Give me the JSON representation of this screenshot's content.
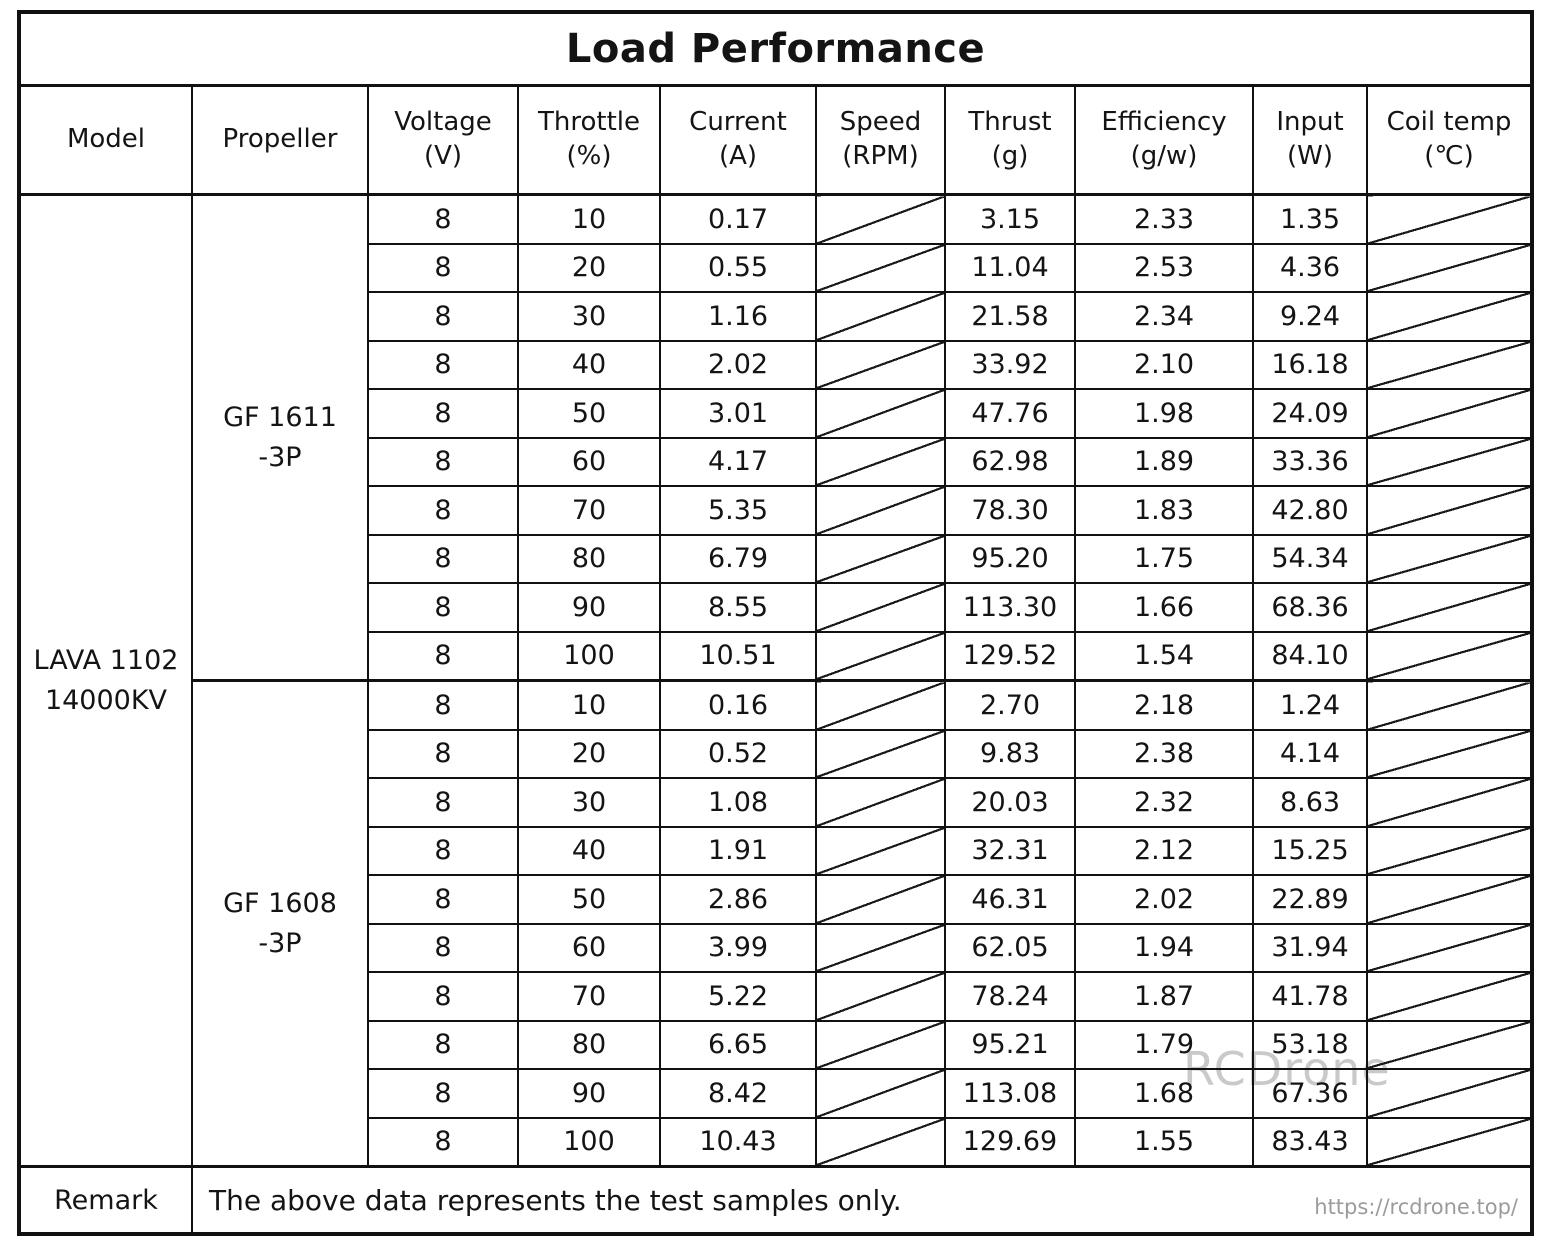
{
  "title": "Load Performance",
  "watermark": "RCDrone",
  "columns": [
    {
      "label": "Model",
      "unit": ""
    },
    {
      "label": "Propeller",
      "unit": ""
    },
    {
      "label": "Voltage",
      "unit": "(V)"
    },
    {
      "label": "Throttle",
      "unit": "(%)"
    },
    {
      "label": "Current",
      "unit": "(A)"
    },
    {
      "label": "Speed",
      "unit": "(RPM)"
    },
    {
      "label": "Thrust",
      "unit": "(g)"
    },
    {
      "label": "Efficiency",
      "unit": "(g/w)"
    },
    {
      "label": "Input",
      "unit": "(W)"
    },
    {
      "label": "Coil temp",
      "unit": "(℃)"
    }
  ],
  "model": "LAVA 1102\n14000KV",
  "groups": [
    {
      "propeller": "GF 1611\n-3P",
      "rows": [
        {
          "voltage": "8",
          "throttle": "10",
          "current": "0.17",
          "thrust": "3.15",
          "efficiency": "2.33",
          "input": "1.35"
        },
        {
          "voltage": "8",
          "throttle": "20",
          "current": "0.55",
          "thrust": "11.04",
          "efficiency": "2.53",
          "input": "4.36"
        },
        {
          "voltage": "8",
          "throttle": "30",
          "current": "1.16",
          "thrust": "21.58",
          "efficiency": "2.34",
          "input": "9.24"
        },
        {
          "voltage": "8",
          "throttle": "40",
          "current": "2.02",
          "thrust": "33.92",
          "efficiency": "2.10",
          "input": "16.18"
        },
        {
          "voltage": "8",
          "throttle": "50",
          "current": "3.01",
          "thrust": "47.76",
          "efficiency": "1.98",
          "input": "24.09"
        },
        {
          "voltage": "8",
          "throttle": "60",
          "current": "4.17",
          "thrust": "62.98",
          "efficiency": "1.89",
          "input": "33.36"
        },
        {
          "voltage": "8",
          "throttle": "70",
          "current": "5.35",
          "thrust": "78.30",
          "efficiency": "1.83",
          "input": "42.80"
        },
        {
          "voltage": "8",
          "throttle": "80",
          "current": "6.79",
          "thrust": "95.20",
          "efficiency": "1.75",
          "input": "54.34"
        },
        {
          "voltage": "8",
          "throttle": "90",
          "current": "8.55",
          "thrust": "113.30",
          "efficiency": "1.66",
          "input": "68.36"
        },
        {
          "voltage": "8",
          "throttle": "100",
          "current": "10.51",
          "thrust": "129.52",
          "efficiency": "1.54",
          "input": "84.10"
        }
      ]
    },
    {
      "propeller": "GF 1608\n-3P",
      "rows": [
        {
          "voltage": "8",
          "throttle": "10",
          "current": "0.16",
          "thrust": "2.70",
          "efficiency": "2.18",
          "input": "1.24"
        },
        {
          "voltage": "8",
          "throttle": "20",
          "current": "0.52",
          "thrust": "9.83",
          "efficiency": "2.38",
          "input": "4.14"
        },
        {
          "voltage": "8",
          "throttle": "30",
          "current": "1.08",
          "thrust": "20.03",
          "efficiency": "2.32",
          "input": "8.63"
        },
        {
          "voltage": "8",
          "throttle": "40",
          "current": "1.91",
          "thrust": "32.31",
          "efficiency": "2.12",
          "input": "15.25"
        },
        {
          "voltage": "8",
          "throttle": "50",
          "current": "2.86",
          "thrust": "46.31",
          "efficiency": "2.02",
          "input": "22.89"
        },
        {
          "voltage": "8",
          "throttle": "60",
          "current": "3.99",
          "thrust": "62.05",
          "efficiency": "1.94",
          "input": "31.94"
        },
        {
          "voltage": "8",
          "throttle": "70",
          "current": "5.22",
          "thrust": "78.24",
          "efficiency": "1.87",
          "input": "41.78"
        },
        {
          "voltage": "8",
          "throttle": "80",
          "current": "6.65",
          "thrust": "95.21",
          "efficiency": "1.79",
          "input": "53.18"
        },
        {
          "voltage": "8",
          "throttle": "90",
          "current": "8.42",
          "thrust": "113.08",
          "efficiency": "1.68",
          "input": "67.36"
        },
        {
          "voltage": "8",
          "throttle": "100",
          "current": "10.43",
          "thrust": "129.69",
          "efficiency": "1.55",
          "input": "83.43"
        }
      ]
    }
  ],
  "remark": {
    "label": "Remark",
    "text": "The above data represents the test samples only.",
    "link": "https://rcdrone.top/"
  }
}
